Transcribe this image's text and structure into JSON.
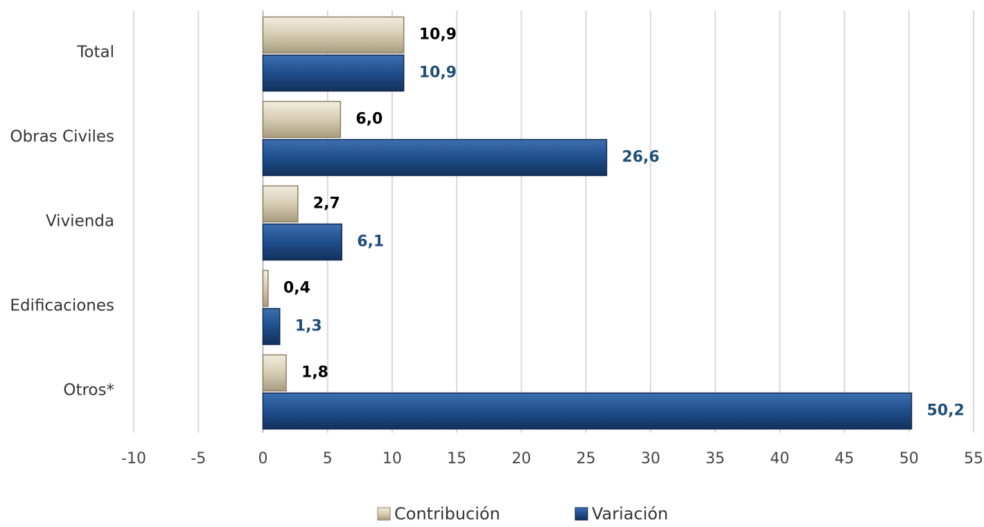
{
  "chart_data": {
    "type": "bar",
    "orientation": "horizontal",
    "categories": [
      "Total",
      "Obras Civiles",
      "Vivienda",
      "Edificaciones",
      "Otros*"
    ],
    "series": [
      {
        "name": "Contribución",
        "color": "#d6ccb2",
        "label_color": "#000000",
        "values": [
          10.9,
          6.0,
          2.7,
          0.4,
          1.8
        ],
        "value_labels": [
          "10,9",
          "6,0",
          "2,7",
          "0,4",
          "1,8"
        ]
      },
      {
        "name": "Variación",
        "color": "#1f4e8c",
        "label_color": "#1f4e79",
        "values": [
          10.9,
          26.6,
          6.1,
          1.3,
          50.2
        ],
        "value_labels": [
          "10,9",
          "26,6",
          "6,1",
          "1,3",
          "50,2"
        ]
      }
    ],
    "xlim": [
      -10,
      55
    ],
    "xticks": [
      -10,
      -5,
      0,
      5,
      10,
      15,
      20,
      25,
      30,
      35,
      40,
      45,
      50,
      55
    ],
    "grid": true,
    "legend": "bottom"
  }
}
